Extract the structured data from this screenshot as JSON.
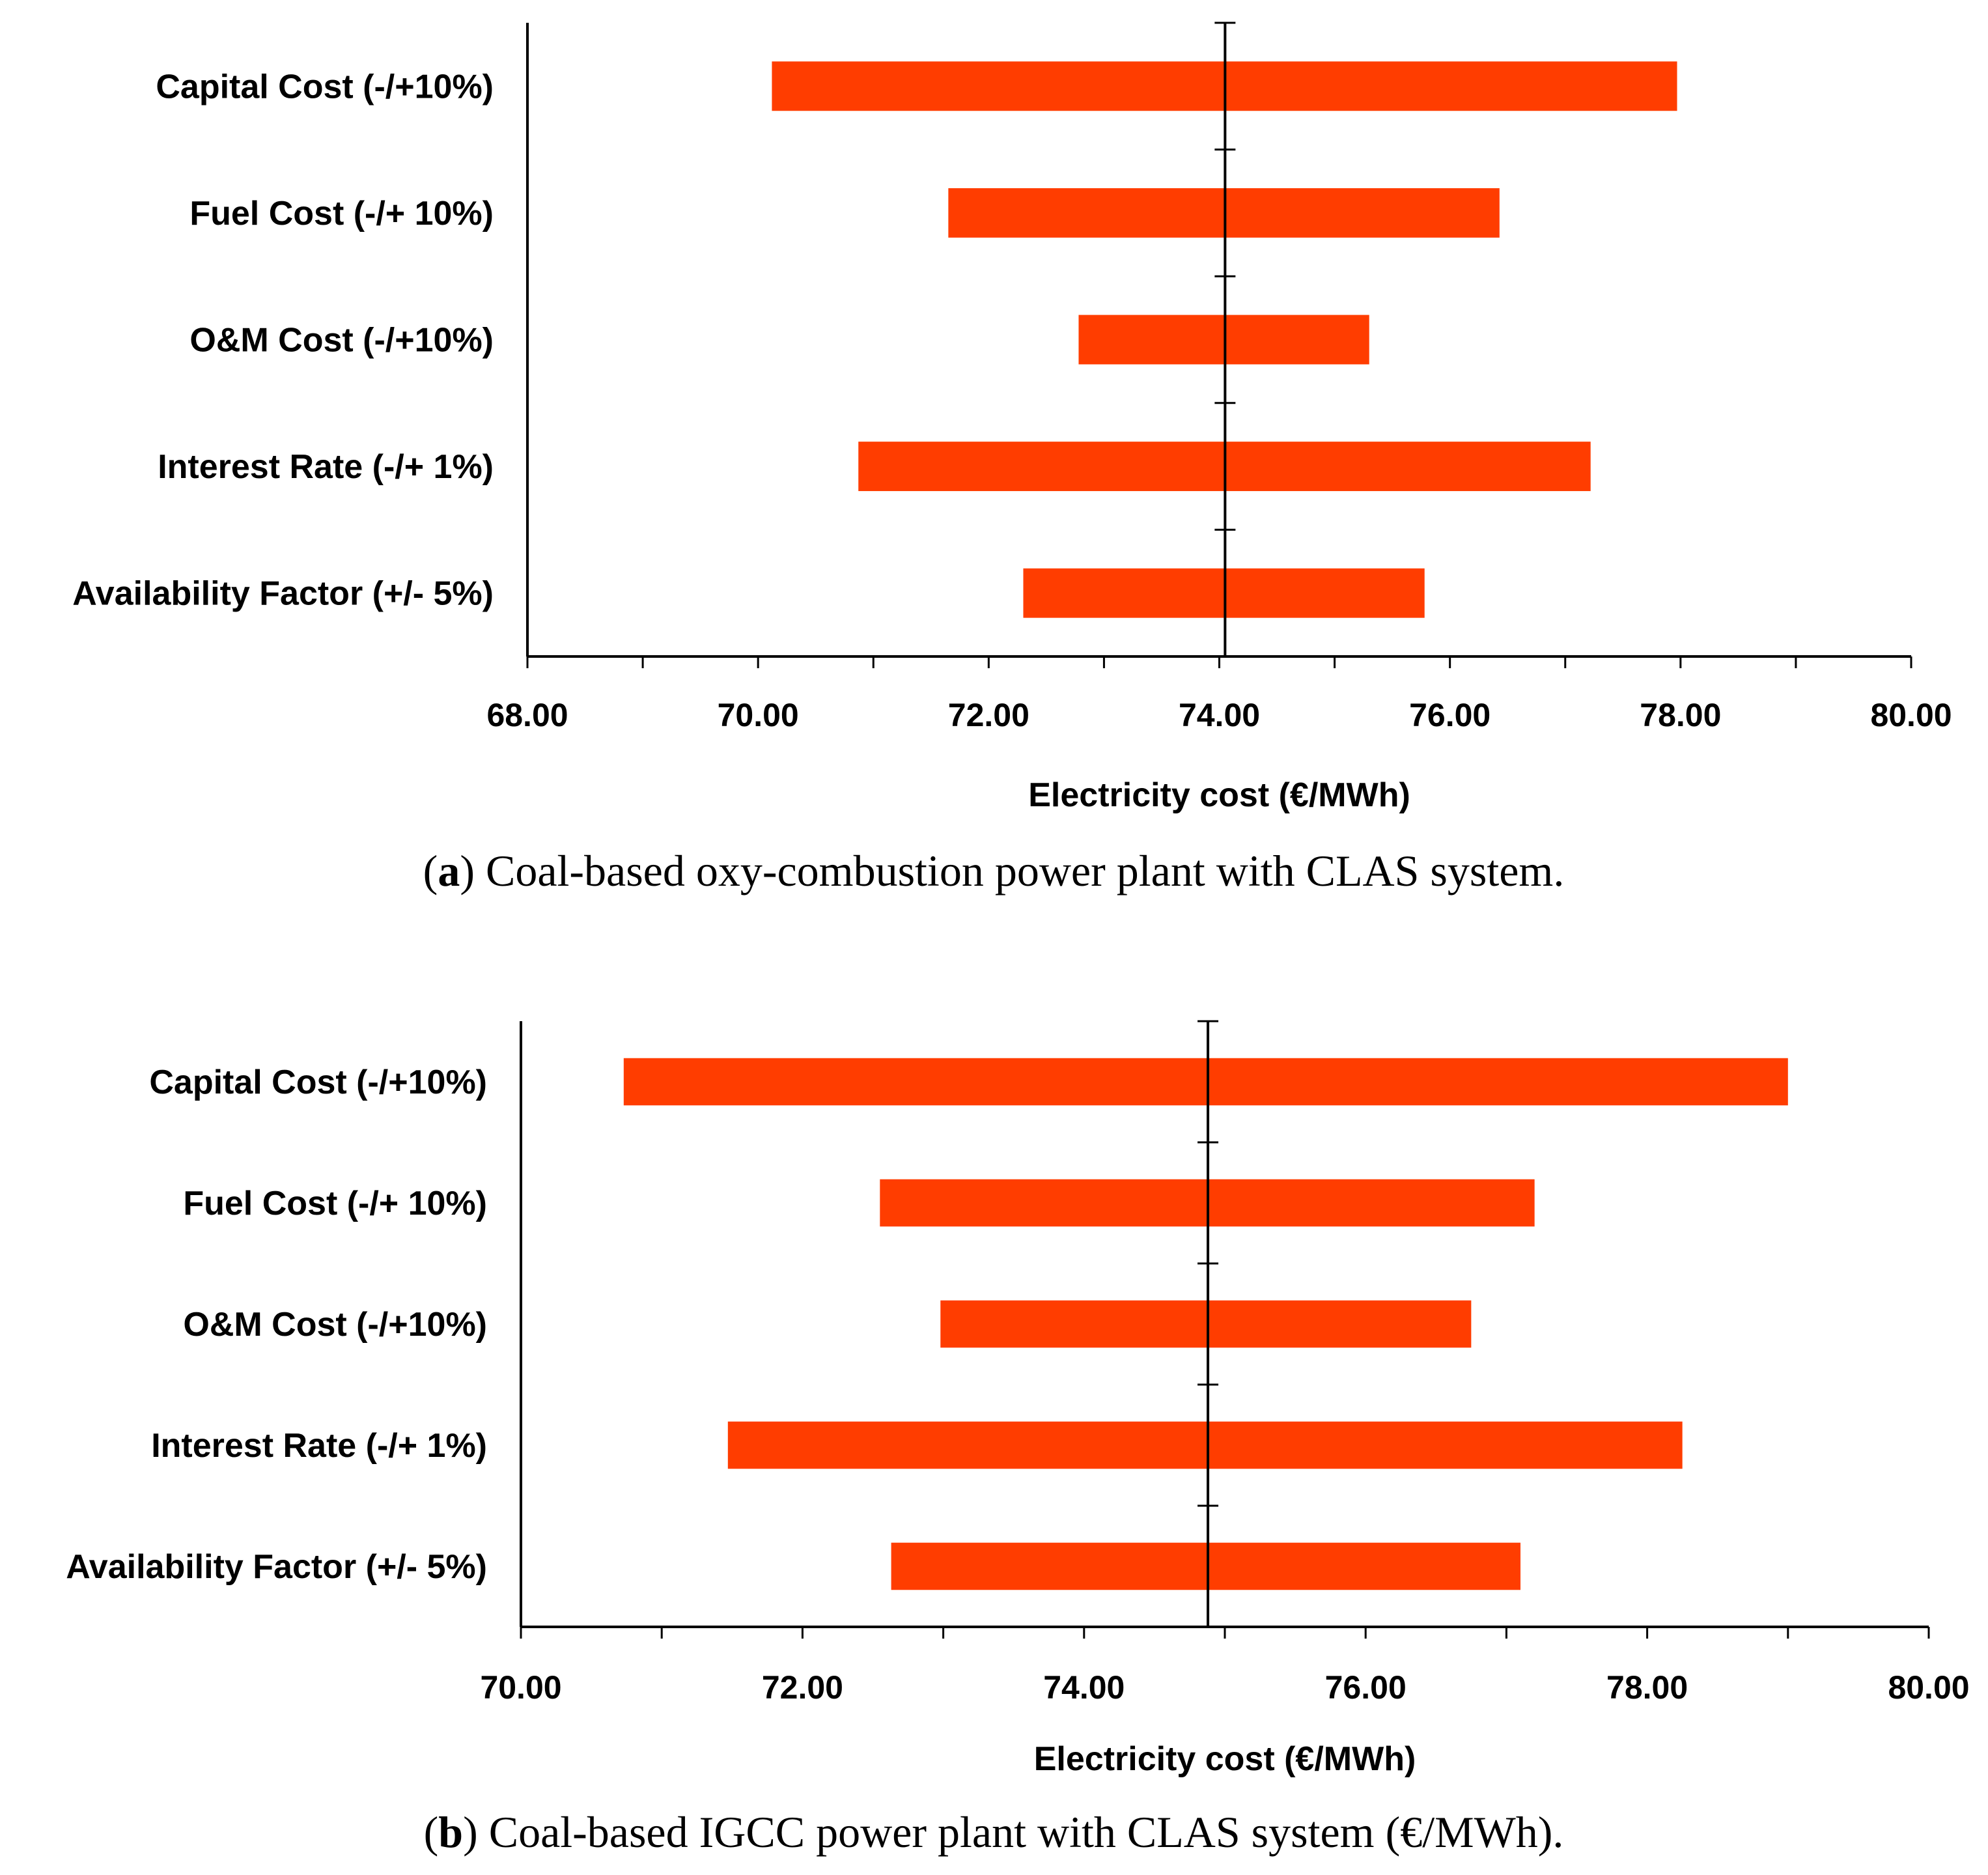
{
  "chart_data": [
    {
      "type": "bar",
      "orientation": "horizontal-tornado",
      "caption_letter": "a",
      "caption_text": "Coal-based oxy-combustion power plant with CLAS system.",
      "xlabel": "Electricity cost (€/MWh)",
      "xlim": [
        68,
        80
      ],
      "xticks": [
        "68.00",
        "70.00",
        "72.00",
        "74.00",
        "76.00",
        "78.00",
        "80.00"
      ],
      "base": 74.05,
      "bar_color": "#ff3d00",
      "categories": [
        "Capital Cost  (-/+10%)",
        "Fuel Cost  (-/+ 10%)",
        "O&M Cost  (-/+10%)",
        "Interest Rate  (-/+ 1%)",
        "Availability Factor  (+/- 5%)"
      ],
      "low": [
        70.12,
        71.65,
        72.78,
        70.87,
        72.3
      ],
      "high": [
        77.97,
        76.43,
        75.3,
        77.22,
        75.78
      ]
    },
    {
      "type": "bar",
      "orientation": "horizontal-tornado",
      "caption_letter": "b",
      "caption_text": "Coal-based IGCC power plant with CLAS system (€/MWh).",
      "xlabel": "Electricity cost (€/MWh)",
      "xlim": [
        70,
        80
      ],
      "xticks": [
        "70.00",
        "72.00",
        "74.00",
        "76.00",
        "78.00",
        "80.00"
      ],
      "base": 74.88,
      "bar_color": "#ff3d00",
      "categories": [
        "Capital Cost  (-/+10%)",
        "Fuel Cost  (-/+ 10%)",
        "O&M Cost  (-/+10%)",
        "Interest Rate  (-/+ 1%)",
        "Availability Factor  (+/- 5%)"
      ],
      "low": [
        70.73,
        72.55,
        72.98,
        71.47,
        72.63
      ],
      "high": [
        79.0,
        77.2,
        76.75,
        78.25,
        77.1
      ]
    }
  ]
}
